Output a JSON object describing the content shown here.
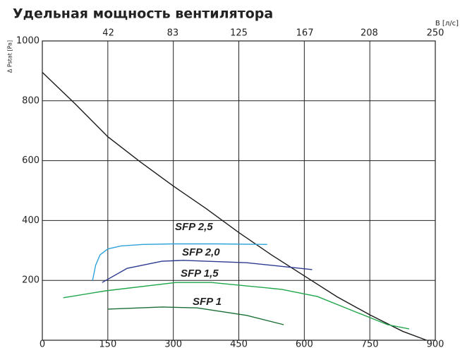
{
  "chart_data": {
    "type": "line",
    "title": "Удельная мощность вентилятора",
    "ylabel": "Δ Pstat [Pa]",
    "x2label": "В [л/с]",
    "xlim": [
      0,
      900
    ],
    "xticks": [
      0,
      150,
      300,
      450,
      600,
      750,
      900
    ],
    "x2lim": [
      0,
      250
    ],
    "x2ticks": [
      42,
      83,
      125,
      167,
      208,
      250
    ],
    "ylim": [
      0,
      1000
    ],
    "yticks": [
      200,
      400,
      600,
      800,
      1000
    ],
    "grid": true,
    "series": [
      {
        "color": "#1a1a1a",
        "x": [
          0,
          75,
          150,
          225,
          300,
          375,
          450,
          525,
          600,
          675,
          750,
          825,
          880
        ],
        "values": [
          895,
          790,
          680,
          595,
          515,
          440,
          360,
          285,
          215,
          145,
          85,
          30,
          0
        ]
      },
      {
        "name": "SFP 2,5",
        "color": "#2ea3db",
        "x": [
          115,
          122,
          132,
          150,
          180,
          230,
          300,
          400,
          515
        ],
        "values": [
          200,
          250,
          285,
          305,
          315,
          320,
          322,
          322,
          320
        ]
      },
      {
        "name": "SFP 2,0",
        "color": "#2b3990",
        "x": [
          137,
          194,
          274,
          322,
          468,
          618
        ],
        "values": [
          193,
          240,
          264,
          267,
          259,
          236
        ]
      },
      {
        "name": "SFP 1,5",
        "color": "#1fa64a",
        "x": [
          48,
          145,
          306,
          387,
          548,
          630,
          710,
          791,
          840
        ],
        "values": [
          142,
          165,
          193,
          193,
          170,
          146,
          99,
          52,
          38
        ]
      },
      {
        "name": "SFP 1",
        "color": "#1a6e35",
        "x": [
          150,
          274,
          355,
          468,
          553
        ],
        "values": [
          104,
          111,
          108,
          83,
          52
        ]
      }
    ]
  }
}
